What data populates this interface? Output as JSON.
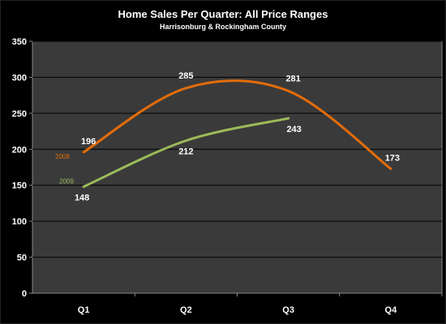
{
  "chart_data": {
    "type": "line",
    "title": "Home Sales Per Quarter: All Price Ranges",
    "subtitle": "Harrisonburg & Rockingham County",
    "categories": [
      "Q1",
      "Q2",
      "Q3",
      "Q4"
    ],
    "ylim": [
      0,
      350
    ],
    "yticks": [
      0,
      50,
      100,
      150,
      200,
      250,
      300,
      350
    ],
    "grid": true,
    "smooth": true,
    "series": [
      {
        "name": "2008",
        "values": [
          196,
          285,
          281,
          173
        ],
        "color": "#e36c0a"
      },
      {
        "name": "2009",
        "values": [
          148,
          212,
          243,
          null
        ],
        "color": "#9bbb59"
      }
    ],
    "colors": {
      "background": "#000000",
      "plot_area": "#3a3a3a",
      "grid": "#000000",
      "text": "#ffffff"
    }
  }
}
